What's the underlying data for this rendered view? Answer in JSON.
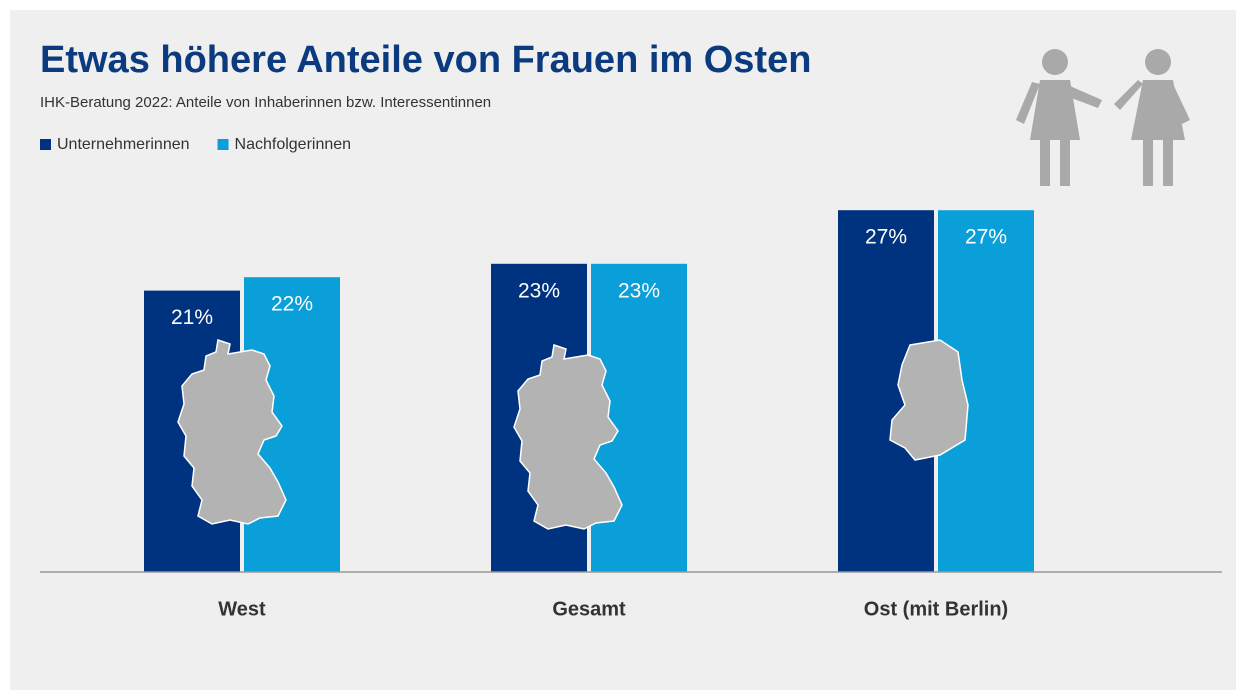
{
  "chart_data": {
    "type": "bar",
    "title": "Etwas höhere Anteile von Frauen im Osten",
    "subtitle": "IHK-Beratung 2022: Anteile von Inhaberinnen bzw. Interessentinnen",
    "categories": [
      "West",
      "Gesamt",
      "Ost (mit Berlin)"
    ],
    "series": [
      {
        "name": "Unternehmerinnen",
        "color": "#00337f",
        "values": [
          21,
          23,
          27
        ],
        "value_labels": [
          "21%",
          "23%",
          "27%"
        ]
      },
      {
        "name": "Nachfolgerinnen",
        "color": "#0a9fd8",
        "values": [
          22,
          23,
          27
        ],
        "value_labels": [
          "22%",
          "23%",
          "27%"
        ]
      }
    ],
    "ylim": [
      0,
      30
    ]
  }
}
